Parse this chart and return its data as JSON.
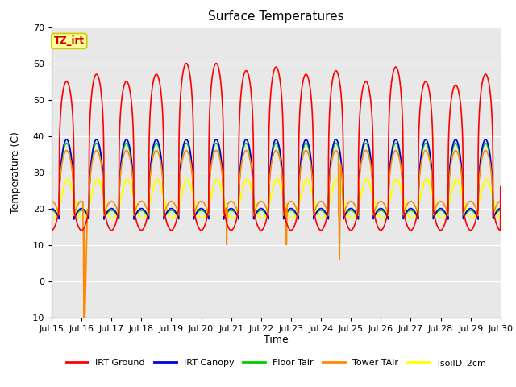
{
  "title": "Surface Temperatures",
  "xlabel": "Time",
  "ylabel": "Temperature (C)",
  "ylim": [
    -10,
    70
  ],
  "background_color": "#ffffff",
  "plot_bg_color": "#e8e8e8",
  "grid_color": "#ffffff",
  "annotation_text": "TZ_irt",
  "annotation_bg": "#ffff99",
  "annotation_border": "#cccc00",
  "annotation_text_color": "#cc0000",
  "x_tick_labels": [
    "Jul 15",
    "Jul 16",
    "Jul 17",
    "Jul 18",
    "Jul 19",
    "Jul 20",
    "Jul 21",
    "Jul 22",
    "Jul 23",
    "Jul 24",
    "Jul 25",
    "Jul 26",
    "Jul 27",
    "Jul 28",
    "Jul 29",
    "Jul 30"
  ],
  "legend_labels": [
    "IRT Ground",
    "IRT Canopy",
    "Floor Tair",
    "Tower TAir",
    "TsoilD_2cm"
  ],
  "series_colors": [
    "#ff0000",
    "#0000dd",
    "#00cc00",
    "#ff8800",
    "#ffff00"
  ],
  "series_lw": [
    1.2,
    1.2,
    1.2,
    1.2,
    1.5
  ],
  "yticks": [
    -10,
    0,
    10,
    20,
    30,
    40,
    50,
    60,
    70
  ],
  "figsize": [
    6.4,
    4.8
  ],
  "dpi": 100
}
